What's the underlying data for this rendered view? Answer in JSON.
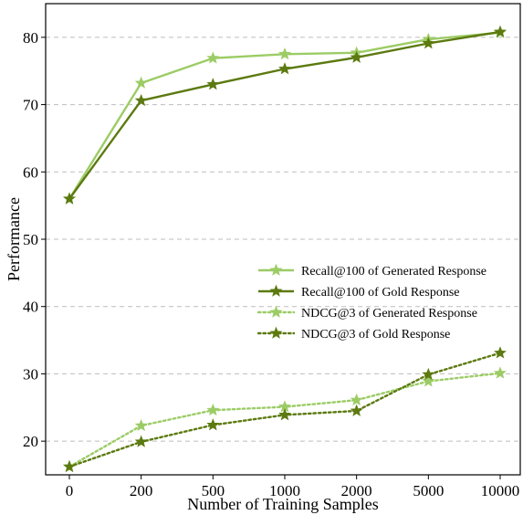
{
  "chart_data": {
    "type": "line",
    "title": "",
    "xlabel": "Number of Training Samples",
    "ylabel": "Performance",
    "categories": [
      "0",
      "200",
      "500",
      "1000",
      "2000",
      "5000",
      "10000"
    ],
    "ylim": [
      15,
      85
    ],
    "yticks": [
      20,
      30,
      40,
      50,
      60,
      70,
      80
    ],
    "grid": "horizontal-dashed",
    "legend_position": "center-right",
    "series": [
      {
        "name": "Recall@100 of Generated Response",
        "color": "#9ccc65",
        "style": "solid",
        "values": [
          56.0,
          73.2,
          76.9,
          77.5,
          77.7,
          79.7,
          80.7
        ]
      },
      {
        "name": "Recall@100 of Gold Response",
        "color": "#5c7a10",
        "style": "solid",
        "values": [
          56.0,
          70.6,
          73.0,
          75.3,
          77.0,
          79.1,
          80.8
        ]
      },
      {
        "name": "NDCG@3 of Generated Response",
        "color": "#9ccc65",
        "style": "dotted",
        "values": [
          16.2,
          22.3,
          24.6,
          25.1,
          26.1,
          28.9,
          30.1
        ]
      },
      {
        "name": "NDCG@3 of Gold Response",
        "color": "#5c7a10",
        "style": "dotted",
        "values": [
          16.2,
          19.9,
          22.4,
          23.9,
          24.5,
          29.9,
          33.1
        ]
      }
    ]
  }
}
